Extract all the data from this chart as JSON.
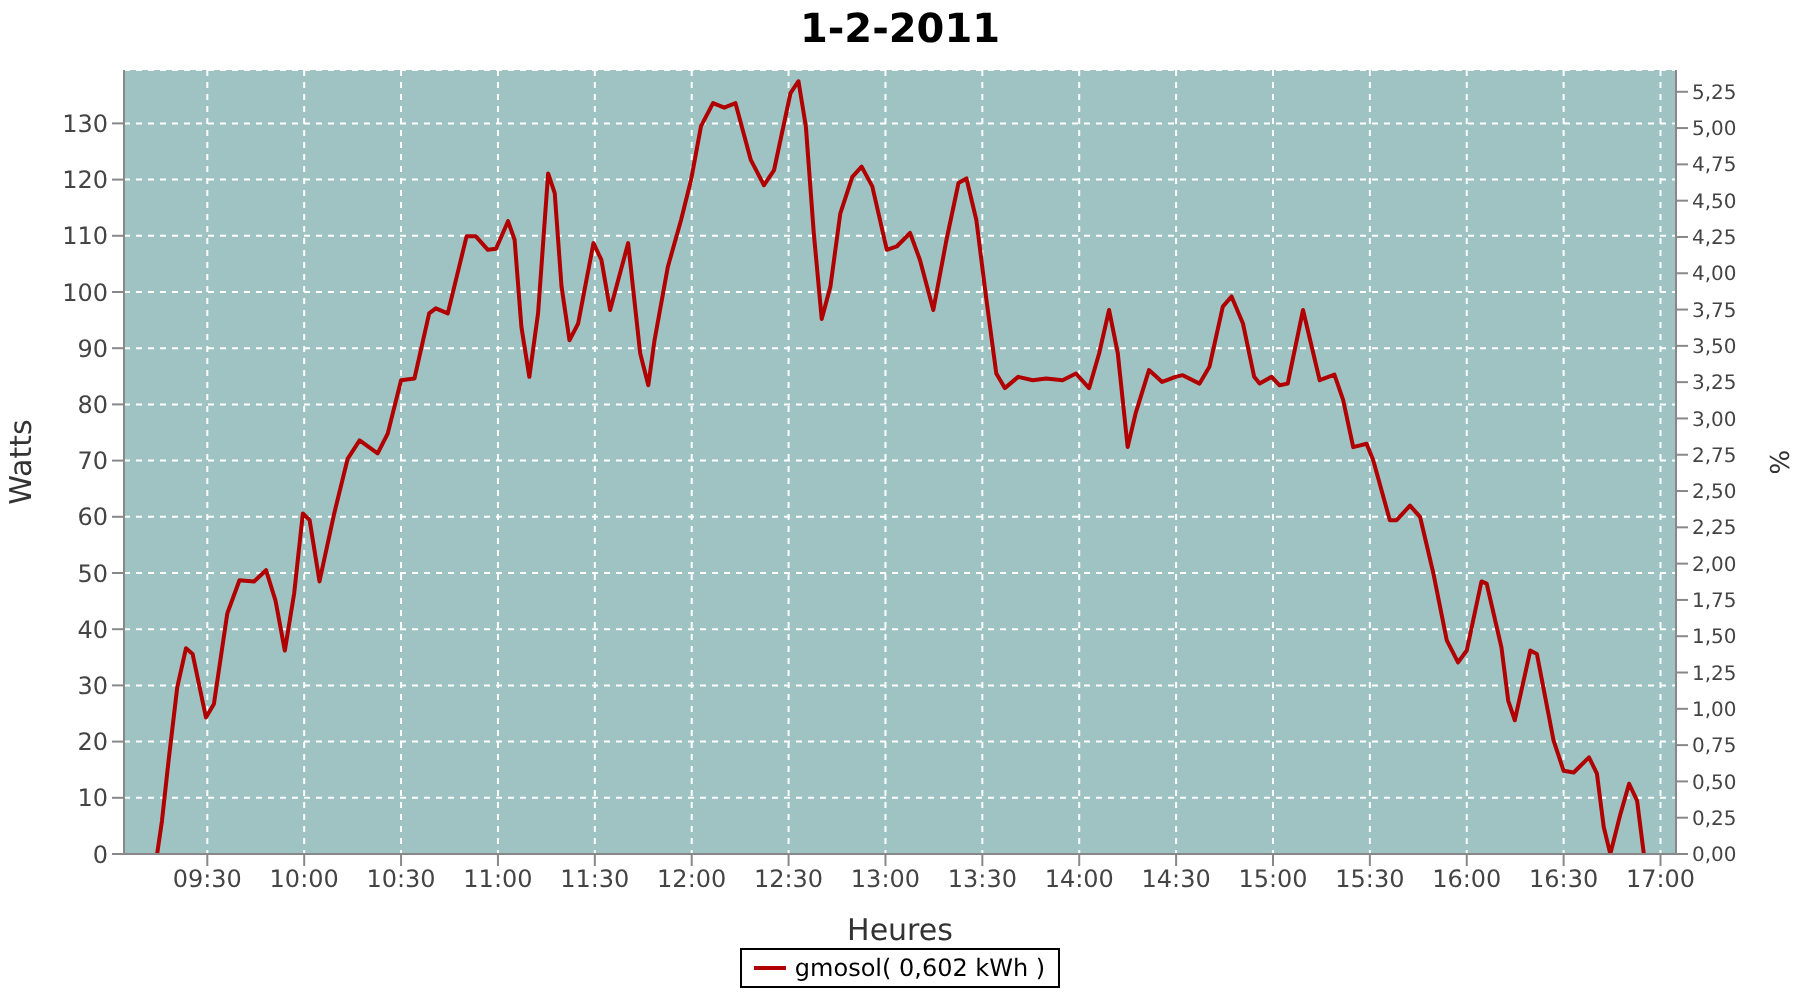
{
  "chart_data": {
    "type": "line",
    "title": "1-2-2011",
    "xlabel": "Heures",
    "ylabel": "Watts",
    "y2label": "%",
    "x": [
      9.241,
      9.266,
      9.3,
      9.345,
      9.39,
      9.424,
      9.493,
      9.534,
      9.603,
      9.666,
      9.741,
      9.803,
      9.852,
      9.9,
      9.948,
      9.993,
      10.028,
      10.079,
      10.155,
      10.224,
      10.286,
      10.379,
      10.431,
      10.5,
      10.569,
      10.645,
      10.679,
      10.741,
      10.838,
      10.886,
      10.948,
      10.99,
      11.052,
      11.086,
      11.121,
      11.162,
      11.207,
      11.259,
      11.293,
      11.328,
      11.369,
      11.414,
      11.493,
      11.534,
      11.579,
      11.672,
      11.734,
      11.776,
      11.808,
      11.877,
      11.945,
      11.997,
      12.048,
      12.11,
      12.168,
      12.226,
      12.305,
      12.373,
      12.425,
      12.51,
      12.551,
      12.589,
      12.63,
      12.671,
      12.716,
      12.767,
      12.829,
      12.877,
      12.932,
      13.007,
      13.058,
      13.127,
      13.178,
      13.247,
      13.315,
      13.377,
      13.418,
      13.469,
      13.521,
      13.572,
      13.616,
      13.685,
      13.76,
      13.829,
      13.914,
      13.983,
      14.051,
      14.103,
      14.154,
      14.199,
      14.25,
      14.291,
      14.36,
      14.428,
      14.497,
      14.534,
      14.621,
      14.672,
      14.741,
      14.786,
      14.845,
      14.903,
      14.931,
      14.993,
      15.034,
      15.076,
      15.155,
      15.241,
      15.317,
      15.362,
      15.414,
      15.483,
      15.517,
      15.603,
      15.638,
      15.707,
      15.759,
      15.828,
      15.897,
      15.955,
      16.0,
      16.076,
      16.103,
      16.179,
      16.214,
      16.248,
      16.328,
      16.362,
      16.448,
      16.5,
      16.552,
      16.631,
      16.672,
      16.707,
      16.741,
      16.793,
      16.838,
      16.879,
      16.914
    ],
    "series": [
      {
        "name": "gmosol( 0,602 kWh )",
        "color": "#b00000",
        "values": [
          0,
          5.9,
          16.6,
          29.7,
          36.6,
          35.6,
          24.3,
          26.7,
          42.8,
          48.7,
          48.5,
          50.5,
          45.1,
          36.2,
          46.3,
          60.6,
          59.4,
          48.5,
          60.6,
          70.3,
          73.6,
          71.3,
          74.8,
          84.3,
          84.6,
          96.2,
          97.1,
          96.2,
          109.9,
          109.9,
          107.5,
          107.7,
          112.6,
          109.3,
          93.8,
          84.9,
          96.2,
          121.1,
          117.6,
          101.0,
          91.4,
          94.4,
          108.7,
          105.7,
          96.8,
          108.7,
          89.1,
          83.4,
          91.4,
          104.5,
          112.8,
          120.0,
          129.5,
          133.6,
          132.8,
          133.6,
          123.5,
          119.0,
          121.7,
          135.4,
          137.5,
          129.5,
          110.5,
          95.2,
          101.0,
          114.0,
          120.5,
          122.3,
          118.8,
          107.5,
          108.1,
          110.5,
          105.7,
          96.8,
          109.3,
          119.4,
          120.2,
          112.8,
          98.6,
          85.5,
          82.9,
          84.9,
          84.3,
          84.6,
          84.3,
          85.5,
          82.9,
          89.1,
          96.8,
          89.1,
          72.4,
          78.4,
          86.1,
          84.0,
          84.9,
          85.2,
          83.7,
          86.7,
          97.4,
          99.2,
          94.4,
          84.9,
          83.7,
          84.9,
          83.4,
          83.7,
          96.8,
          84.3,
          85.3,
          80.8,
          72.4,
          73.0,
          70.1,
          59.4,
          59.4,
          62.0,
          60.0,
          49.9,
          38.0,
          34.1,
          36.2,
          48.5,
          48.1,
          36.8,
          27.3,
          23.8,
          36.2,
          35.6,
          20.2,
          14.8,
          14.5,
          17.2,
          14.3,
          4.8,
          0,
          7.1,
          12.5,
          9.5,
          0
        ]
      }
    ],
    "xlim": [
      9.07,
      17.08
    ],
    "xticks": [
      {
        "value": 9.5,
        "label": "09:30"
      },
      {
        "value": 10,
        "label": "10:00"
      },
      {
        "value": 10.5,
        "label": "10:30"
      },
      {
        "value": 11,
        "label": "11:00"
      },
      {
        "value": 11.5,
        "label": "11:30"
      },
      {
        "value": 12,
        "label": "12:00"
      },
      {
        "value": 12.5,
        "label": "12:30"
      },
      {
        "value": 13,
        "label": "13:00"
      },
      {
        "value": 13.5,
        "label": "13:30"
      },
      {
        "value": 14,
        "label": "14:00"
      },
      {
        "value": 14.5,
        "label": "14:30"
      },
      {
        "value": 15,
        "label": "15:00"
      },
      {
        "value": 15.5,
        "label": "15:30"
      },
      {
        "value": 16,
        "label": "16:00"
      },
      {
        "value": 16.5,
        "label": "16:30"
      },
      {
        "value": 17,
        "label": "17:00"
      }
    ],
    "ylim": [
      0,
      139.5
    ],
    "yticks": [
      0,
      10,
      20,
      30,
      40,
      50,
      60,
      70,
      80,
      90,
      100,
      110,
      120,
      130
    ],
    "y2lim": [
      0,
      5.4
    ],
    "y2ticks": [
      {
        "value": 0,
        "label": "0,00"
      },
      {
        "value": 0.25,
        "label": "0,25"
      },
      {
        "value": 0.5,
        "label": "0,50"
      },
      {
        "value": 0.75,
        "label": "0,75"
      },
      {
        "value": 1,
        "label": "1,00"
      },
      {
        "value": 1.25,
        "label": "1,25"
      },
      {
        "value": 1.5,
        "label": "1,50"
      },
      {
        "value": 1.75,
        "label": "1,75"
      },
      {
        "value": 2,
        "label": "2,00"
      },
      {
        "value": 2.25,
        "label": "2,25"
      },
      {
        "value": 2.5,
        "label": "2,50"
      },
      {
        "value": 2.75,
        "label": "2,75"
      },
      {
        "value": 3,
        "label": "3,00"
      },
      {
        "value": 3.25,
        "label": "3,25"
      },
      {
        "value": 3.5,
        "label": "3,50"
      },
      {
        "value": 3.75,
        "label": "3,75"
      },
      {
        "value": 4,
        "label": "4,00"
      },
      {
        "value": 4.25,
        "label": "4,25"
      },
      {
        "value": 4.5,
        "label": "4,50"
      },
      {
        "value": 4.75,
        "label": "4,75"
      },
      {
        "value": 5,
        "label": "5,00"
      },
      {
        "value": 5.25,
        "label": "5,25"
      }
    ],
    "grid": true,
    "legend": "bottom",
    "marker": "none",
    "line_style": "solid"
  }
}
